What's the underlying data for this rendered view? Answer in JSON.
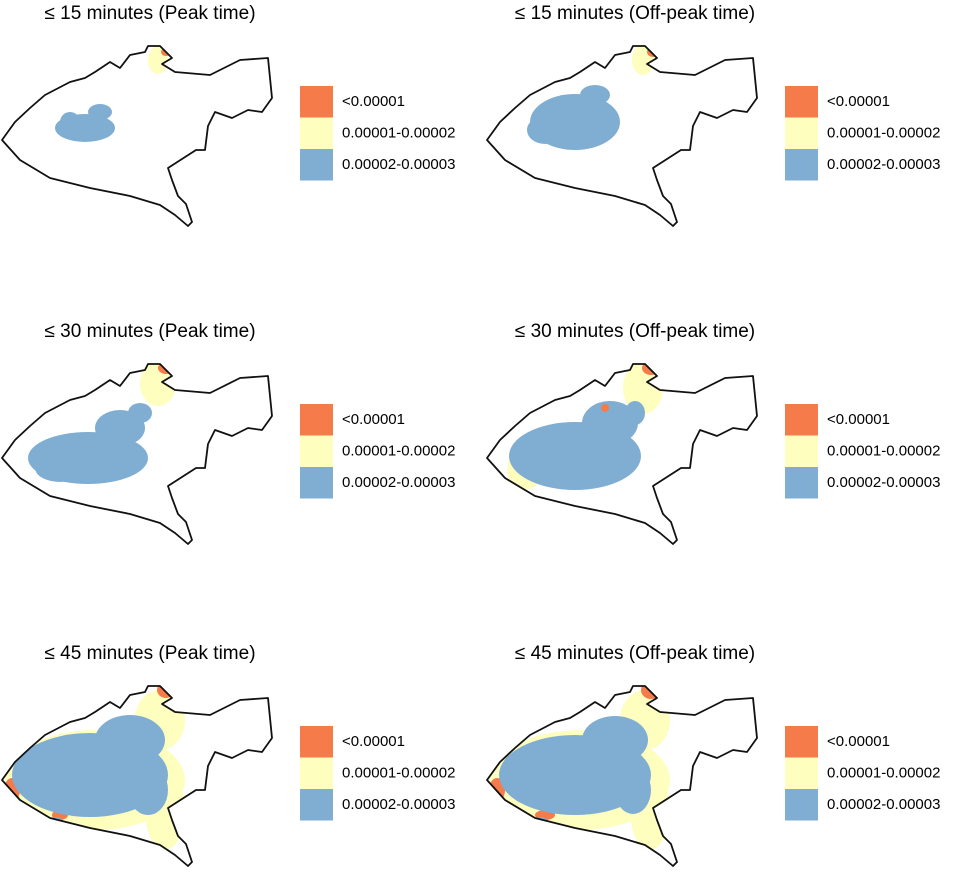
{
  "panels": [
    {
      "title": "≤ 15 minutes (Peak time)",
      "legend": [
        {
          "label": "<0.00001",
          "color": "#f57b4b"
        },
        {
          "label": "0.00001-0.00002",
          "color": "#fefebe"
        },
        {
          "label": "0.00002-0.00003",
          "color": "#80aed3"
        }
      ]
    },
    {
      "title": "≤ 15 minutes (Off-peak time)",
      "legend": [
        {
          "label": "<0.00001",
          "color": "#f57b4b"
        },
        {
          "label": "0.00001-0.00002",
          "color": "#fefebe"
        },
        {
          "label": "0.00002-0.00003",
          "color": "#80aed3"
        }
      ]
    },
    {
      "title": "≤ 30 minutes (Peak time)",
      "legend": [
        {
          "label": "<0.00001",
          "color": "#f57b4b"
        },
        {
          "label": "0.00001-0.00002",
          "color": "#fefebe"
        },
        {
          "label": "0.00002-0.00003",
          "color": "#80aed3"
        }
      ]
    },
    {
      "title": "≤ 30 minutes (Off-peak time)",
      "legend": [
        {
          "label": "<0.00001",
          "color": "#f57b4b"
        },
        {
          "label": "0.00001-0.00002",
          "color": "#fefebe"
        },
        {
          "label": "0.00002-0.00003",
          "color": "#80aed3"
        }
      ]
    },
    {
      "title": "≤ 45 minutes (Peak time)",
      "legend": [
        {
          "label": "<0.00001",
          "color": "#f57b4b"
        },
        {
          "label": "0.00001-0.00002",
          "color": "#fefebe"
        },
        {
          "label": "0.00002-0.00003",
          "color": "#80aed3"
        }
      ]
    },
    {
      "title": "≤ 45 minutes (Off-peak time)",
      "legend": [
        {
          "label": "<0.00001",
          "color": "#f57b4b"
        },
        {
          "label": "0.00001-0.00002",
          "color": "#fefebe"
        },
        {
          "label": "0.00002-0.00003",
          "color": "#80aed3"
        }
      ]
    }
  ]
}
